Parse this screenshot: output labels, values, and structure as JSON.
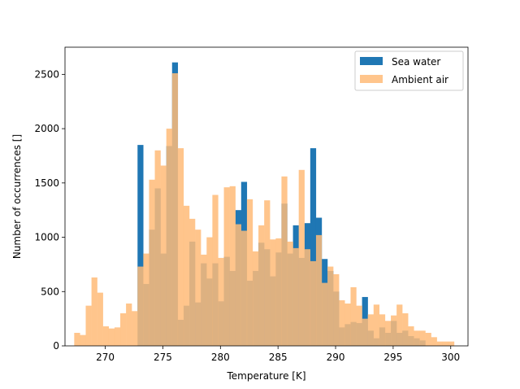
{
  "chart_data": {
    "type": "bar",
    "title": "",
    "xlabel": "Temperature [K]",
    "ylabel": "Number of occurrences []",
    "xlim": [
      266.5,
      301.5
    ],
    "ylim": [
      0,
      2750
    ],
    "xticks": [
      270,
      275,
      280,
      285,
      290,
      295,
      300
    ],
    "yticks": [
      0,
      500,
      1000,
      1500,
      2000,
      2500
    ],
    "legend_position": "upper right",
    "grid": false,
    "series": [
      {
        "name": "Sea water",
        "color": "#1f77b4",
        "opacity": 1.0,
        "bin_width": 0.5,
        "bin_starts": [
          272.8,
          273.3,
          273.8,
          274.3,
          274.8,
          275.3,
          275.8,
          276.3,
          276.8,
          277.3,
          277.8,
          278.3,
          278.8,
          279.3,
          279.8,
          280.3,
          280.8,
          281.3,
          281.8,
          282.3,
          282.8,
          283.3,
          283.8,
          284.3,
          284.8,
          285.3,
          285.8,
          286.3,
          286.8,
          287.3,
          287.8,
          288.3,
          288.8,
          289.3,
          289.8,
          290.3,
          290.8,
          291.3,
          291.8,
          292.3,
          292.8,
          293.3,
          293.8,
          294.3,
          294.8,
          295.3,
          295.8,
          296.3,
          296.8,
          297.3
        ],
        "values": [
          1850,
          570,
          1070,
          1450,
          850,
          1840,
          2610,
          240,
          370,
          960,
          400,
          760,
          620,
          760,
          410,
          820,
          690,
          1250,
          1510,
          600,
          690,
          950,
          890,
          640,
          860,
          1310,
          850,
          1110,
          810,
          1130,
          1820,
          1180,
          800,
          690,
          500,
          170,
          200,
          220,
          210,
          450,
          140,
          70,
          170,
          120,
          230,
          120,
          140,
          90,
          70,
          50
        ]
      },
      {
        "name": "Ambient air",
        "color": "#ffbb78",
        "opacity": 0.85,
        "bin_width": 0.5,
        "bin_starts": [
          267.3,
          267.8,
          268.3,
          268.8,
          269.3,
          269.8,
          270.3,
          270.8,
          271.3,
          271.8,
          272.3,
          272.8,
          273.3,
          273.8,
          274.3,
          274.8,
          275.3,
          275.8,
          276.3,
          276.8,
          277.3,
          277.8,
          278.3,
          278.8,
          279.3,
          279.8,
          280.3,
          280.8,
          281.3,
          281.8,
          282.3,
          282.8,
          283.3,
          283.8,
          284.3,
          284.8,
          285.3,
          285.8,
          286.3,
          286.8,
          287.3,
          287.8,
          288.3,
          288.8,
          289.3,
          289.8,
          290.3,
          290.8,
          291.3,
          291.8,
          292.3,
          292.8,
          293.3,
          293.8,
          294.3,
          294.8,
          295.3,
          295.8,
          296.3,
          296.8,
          297.3,
          297.8,
          298.3,
          298.8,
          299.3,
          299.8
        ],
        "values": [
          120,
          100,
          370,
          630,
          490,
          180,
          160,
          170,
          300,
          390,
          320,
          730,
          850,
          1530,
          1800,
          1660,
          2000,
          2510,
          1820,
          1290,
          1170,
          1070,
          840,
          1000,
          1390,
          810,
          1460,
          1470,
          1120,
          1060,
          1350,
          870,
          1110,
          1340,
          980,
          990,
          1560,
          960,
          900,
          1620,
          890,
          780,
          1020,
          580,
          730,
          660,
          420,
          390,
          540,
          370,
          250,
          290,
          380,
          290,
          230,
          280,
          380,
          300,
          180,
          140,
          140,
          120,
          80,
          40,
          40,
          40
        ]
      }
    ]
  }
}
